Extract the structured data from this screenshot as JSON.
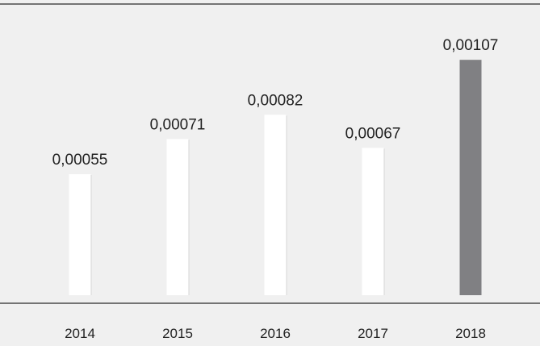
{
  "chart_data": {
    "type": "bar",
    "categories": [
      "2014",
      "2015",
      "2016",
      "2017",
      "2018"
    ],
    "values": [
      0.00055,
      0.00071,
      0.00082,
      0.00067,
      0.00107
    ],
    "data_labels": [
      "0,00055",
      "0,00071",
      "0,00082",
      "0,00067",
      "0,00107"
    ],
    "highlight_index": 4,
    "ylim": [
      0,
      0.0011
    ],
    "grid": false,
    "legend": "none",
    "title": "",
    "xlabel": "",
    "ylabel": ""
  },
  "colors": {
    "background": "#f0f0f0",
    "bar": "#ffffff",
    "bar_highlight": "#808083",
    "text": "#222222",
    "rule": "#2b2b2b"
  }
}
